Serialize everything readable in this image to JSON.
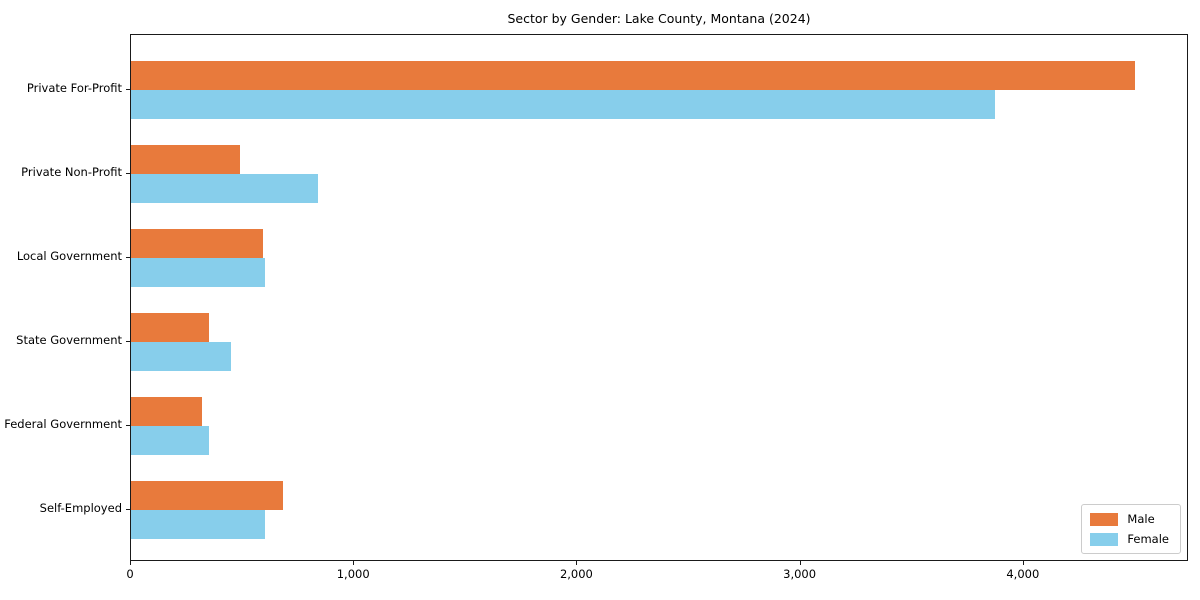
{
  "figure": {
    "background": "#ffffff",
    "axis_color": "#1a1a1a",
    "text_color": "#000000"
  },
  "chart_data": {
    "type": "bar",
    "orientation": "horizontal",
    "title": "Sector by Gender: Lake County, Montana (2024)",
    "categories": [
      "Private For-Profit",
      "Private Non-Profit",
      "Local Government",
      "State Government",
      "Federal Government",
      "Self-Employed"
    ],
    "series": [
      {
        "name": "Male",
        "color": "#e87a3c",
        "values": [
          4500,
          490,
          590,
          350,
          320,
          680
        ]
      },
      {
        "name": "Female",
        "color": "#87ceeb",
        "values": [
          3870,
          840,
          600,
          450,
          350,
          600
        ]
      }
    ],
    "xlabel": "",
    "ylabel": "",
    "xlim": [
      0,
      4740
    ],
    "xticks": [
      0,
      1000,
      2000,
      3000,
      4000
    ],
    "xtick_labels": [
      "0",
      "1,000",
      "2,000",
      "3,000",
      "4,000"
    ],
    "grid": false,
    "legend": {
      "position": "lower right"
    }
  }
}
